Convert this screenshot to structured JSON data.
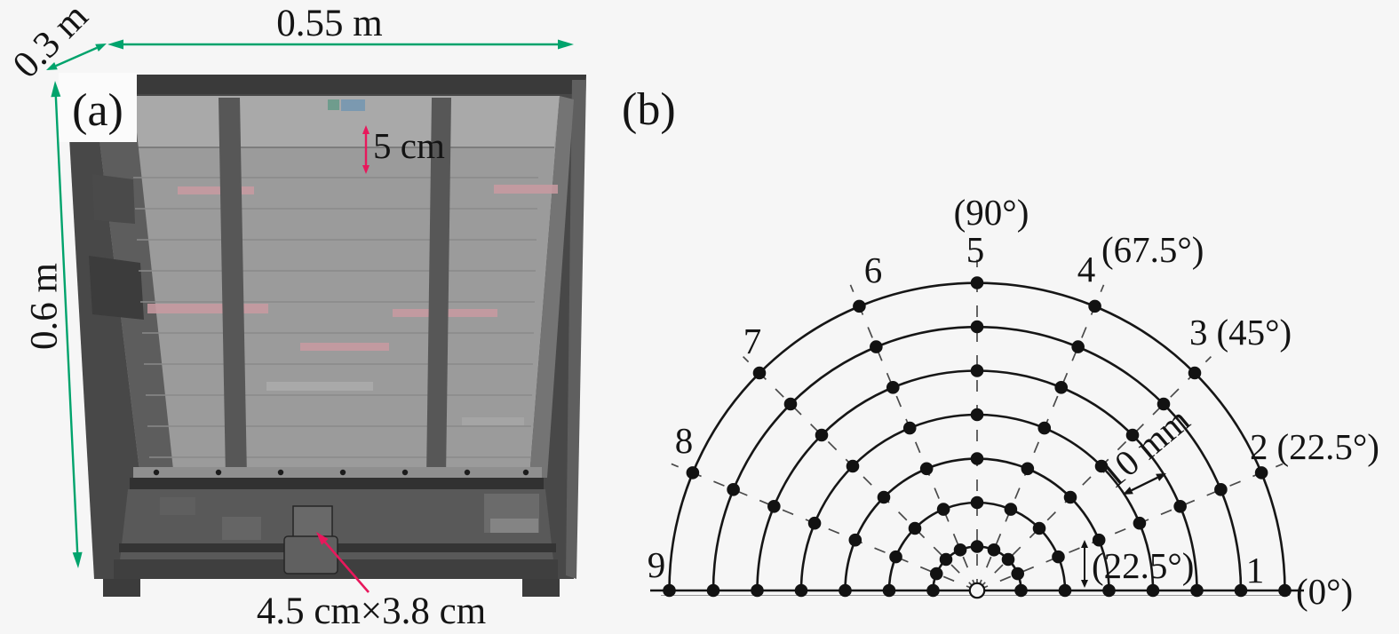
{
  "figure": {
    "panel_a": {
      "label": "(a)",
      "width_label": "0.55 m",
      "depth_label": "0.3 m",
      "height_label": "0.6 m",
      "layer_thickness_label": "5 cm",
      "outlet_size_label": "4.5 cm×3.8 cm"
    },
    "panel_b": {
      "label": "(b)",
      "rings": 7,
      "ring_spacing_label": "10 mm",
      "angular_spacing_label": "(22.5°)",
      "positions": [
        {
          "num": "1",
          "angle_deg": 0,
          "angle_label": "(0°)"
        },
        {
          "num": "2",
          "angle_deg": 22.5,
          "angle_label": "(22.5°)"
        },
        {
          "num": "3",
          "angle_deg": 45,
          "angle_label": "(45°)"
        },
        {
          "num": "4",
          "angle_deg": 67.5,
          "angle_label": "(67.5°)"
        },
        {
          "num": "5",
          "angle_deg": 90,
          "angle_label": "(90°)"
        },
        {
          "num": "6",
          "angle_deg": 112.5
        },
        {
          "num": "7",
          "angle_deg": 135
        },
        {
          "num": "8",
          "angle_deg": 157.5
        },
        {
          "num": "9",
          "angle_deg": 180
        }
      ]
    },
    "colors": {
      "dimension_green": "#00a36c",
      "annotation_red": "#e8185c",
      "ink": "#141414"
    }
  }
}
